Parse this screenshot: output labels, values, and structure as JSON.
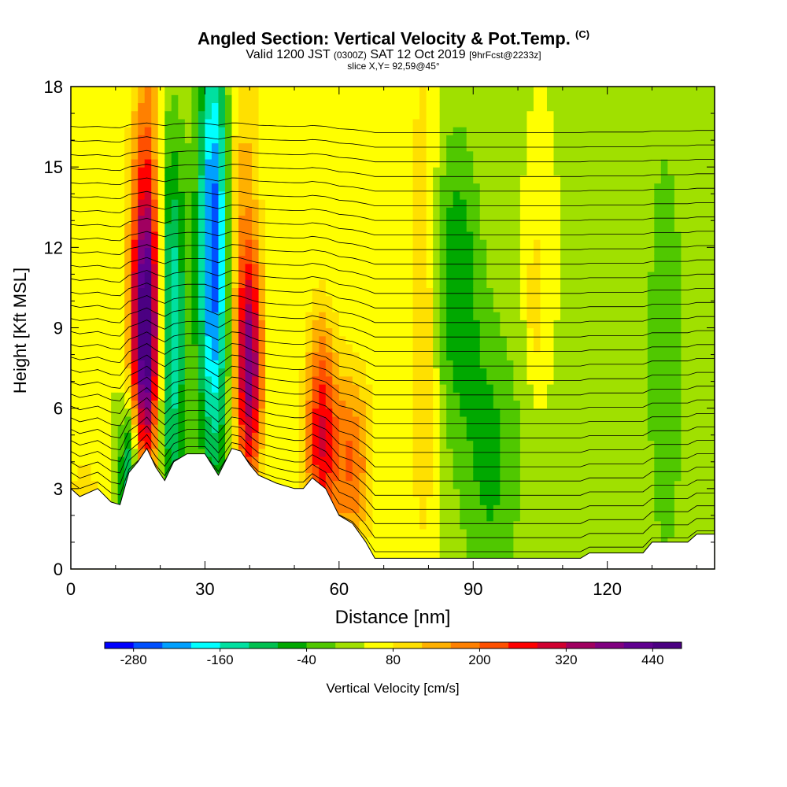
{
  "header": {
    "title": "Angled Section: Vertical Velocity & Pot.Temp.",
    "title_unit": "(C)",
    "valid_prefix": "Valid 1200 JST",
    "valid_utc": "(0300Z)",
    "valid_date": "SAT 12 Oct 2019",
    "forecast": "[9hrFcst@2233z]",
    "slice": "slice X,Y= 92,59@45°"
  },
  "chart_data": {
    "type": "heatmap",
    "xlabel": "Distance [nm]",
    "ylabel": "Height [Kft MSL]",
    "xlim": [
      0,
      144
    ],
    "ylim": [
      0,
      18
    ],
    "x_ticks": [
      "0",
      "30",
      "60",
      "90",
      "120"
    ],
    "y_ticks": [
      "0",
      "3",
      "6",
      "9",
      "12",
      "15",
      "18"
    ],
    "colorbar": {
      "label": "Vertical Velocity [cm/s]",
      "tick_labels": [
        "-280",
        "-160",
        "-40",
        "80",
        "200",
        "320",
        "440"
      ],
      "levels": [
        -320,
        -280,
        -240,
        -200,
        -160,
        -120,
        -80,
        -40,
        0,
        40,
        80,
        120,
        160,
        200,
        240,
        280,
        320,
        360,
        400,
        440,
        480
      ],
      "colors": [
        "#0000ff",
        "#0050ff",
        "#00a0ff",
        "#00ffff",
        "#00e0a0",
        "#00c050",
        "#00a800",
        "#50c800",
        "#a0e000",
        "#ffff00",
        "#ffe000",
        "#ffb000",
        "#ff8000",
        "#ff5000",
        "#ff0000",
        "#d00030",
        "#a00060",
        "#800080",
        "#600090",
        "#4b0082"
      ]
    },
    "background_velocity": 40,
    "velocity_features": [
      {
        "x": 17,
        "y": 8.5,
        "sx": 2.5,
        "sy": 3.5,
        "value": 440
      },
      {
        "x": 17,
        "y": 14,
        "sx": 2.5,
        "sy": 5,
        "value": 200
      },
      {
        "x": 22,
        "y": 9,
        "sx": 2.5,
        "sy": 5,
        "value": -200
      },
      {
        "x": 32,
        "y": 12,
        "sx": 2.5,
        "sy": 6,
        "value": -280
      },
      {
        "x": 40,
        "y": 7.5,
        "sx": 2,
        "sy": 3,
        "value": 340
      },
      {
        "x": 38,
        "y": 13,
        "sx": 3,
        "sy": 6,
        "value": 140
      },
      {
        "x": 56,
        "y": 5,
        "sx": 2.5,
        "sy": 3,
        "value": 280
      },
      {
        "x": 63,
        "y": 4,
        "sx": 3,
        "sy": 2.5,
        "value": 200
      },
      {
        "x": 79,
        "y": 10,
        "sx": 2.5,
        "sy": 7,
        "value": 130
      },
      {
        "x": 94,
        "y": 4,
        "sx": 5,
        "sy": 4,
        "value": -50
      },
      {
        "x": 86,
        "y": 11,
        "sx": 4,
        "sy": 4,
        "value": -70
      },
      {
        "x": 104,
        "y": 10,
        "sx": 1.5,
        "sy": 2,
        "value": 120
      },
      {
        "x": 133,
        "y": 8,
        "sx": 4,
        "sy": 8,
        "value": -20
      },
      {
        "x": 3,
        "y": 2.5,
        "sx": 3,
        "sy": 1.5,
        "value": 100
      },
      {
        "x": 13,
        "y": 3.5,
        "sx": 1.5,
        "sy": 2,
        "value": -160
      }
    ],
    "terrain": [
      [
        0,
        3.0
      ],
      [
        2,
        2.7
      ],
      [
        6,
        3.0
      ],
      [
        9,
        2.5
      ],
      [
        11,
        2.4
      ],
      [
        13,
        3.6
      ],
      [
        15,
        4.0
      ],
      [
        17,
        4.5
      ],
      [
        19,
        3.8
      ],
      [
        21,
        3.3
      ],
      [
        23,
        4.0
      ],
      [
        26,
        4.3
      ],
      [
        30,
        4.3
      ],
      [
        33,
        3.5
      ],
      [
        36,
        4.5
      ],
      [
        38,
        4.4
      ],
      [
        40,
        3.9
      ],
      [
        42,
        3.5
      ],
      [
        46,
        3.2
      ],
      [
        50,
        3.0
      ],
      [
        52,
        3.0
      ],
      [
        54,
        3.4
      ],
      [
        57,
        3.0
      ],
      [
        60,
        2.0
      ],
      [
        63,
        1.7
      ],
      [
        66,
        1.0
      ],
      [
        68,
        0.4
      ],
      [
        77,
        0.4
      ],
      [
        80,
        0.4
      ],
      [
        100,
        0.4
      ],
      [
        114,
        0.4
      ],
      [
        116,
        0.6
      ],
      [
        128,
        0.6
      ],
      [
        130,
        1.0
      ],
      [
        138,
        1.0
      ],
      [
        140,
        1.3
      ],
      [
        144,
        1.3
      ]
    ],
    "isentropes": {
      "count": 30,
      "spacing_kft": 0.55,
      "line_color": "#000000"
    }
  }
}
